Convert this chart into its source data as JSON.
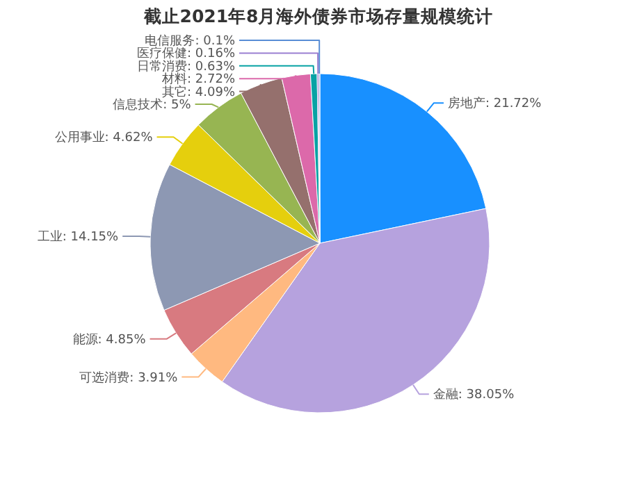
{
  "chart_data": {
    "type": "pie",
    "title": "截止2021年8月海外债券市场存量规模统计",
    "categories": [
      "房地产",
      "金融",
      "可选消费",
      "能源",
      "工业",
      "公用事业",
      "信息技术",
      "其它",
      "材料",
      "日常消费",
      "医疗保健",
      "电信服务"
    ],
    "values": [
      21.72,
      38.05,
      3.91,
      4.85,
      14.15,
      4.62,
      5,
      4.09,
      2.72,
      0.63,
      0.16,
      0.1
    ],
    "colors": [
      "#1890ff",
      "#b6a2de",
      "#ffb980",
      "#d87a80",
      "#8d98b3",
      "#e5cf0d",
      "#97b552",
      "#95706d",
      "#dc69aa",
      "#07a2a4",
      "#9a7fd1",
      "#588dd5"
    ],
    "value_labels": [
      ": 21.72%",
      ": 38.05%",
      ": 3.91%",
      ": 4.85%",
      ": 14.15%",
      ": 4.62%",
      ": 5%",
      ": 4.09%",
      ": 2.72%",
      ": 0.63%",
      ": 0.16%",
      ": 0.1%"
    ],
    "legend": false
  }
}
